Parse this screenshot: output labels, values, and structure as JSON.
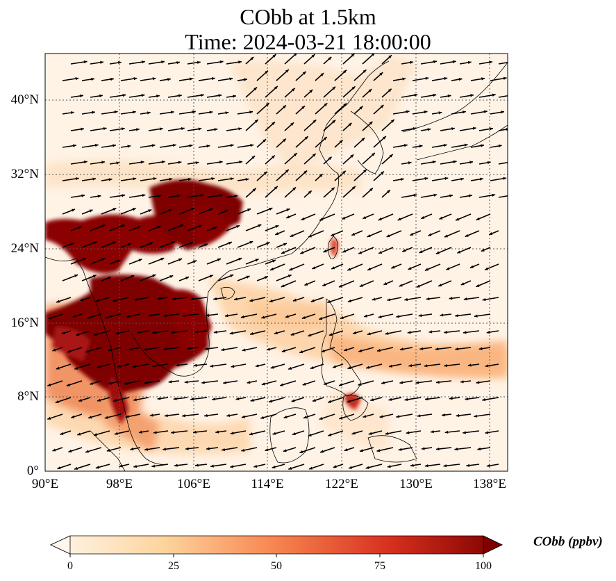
{
  "title": {
    "line1": "CObb at 1.5km",
    "line2": "Time: 2024-03-21 18:00:00"
  },
  "map": {
    "type": "filled-contour-with-wind-vectors",
    "variable": "CObb",
    "level": "1.5km",
    "lon_range": [
      90,
      139
    ],
    "lat_range": [
      0,
      45
    ],
    "gridlines": true,
    "gridline_style": "dotted",
    "lat_ticks": [
      {
        "value": 40,
        "label": "40°N"
      },
      {
        "value": 32,
        "label": "32°N"
      },
      {
        "value": 24,
        "label": "24°N"
      },
      {
        "value": 16,
        "label": "16°N"
      },
      {
        "value": 8,
        "label": "8°N"
      },
      {
        "value": 0,
        "label": "0°"
      }
    ],
    "lon_ticks": [
      {
        "value": 90,
        "label": "90°E"
      },
      {
        "value": 98,
        "label": "98°E"
      },
      {
        "value": 106,
        "label": "106°E"
      },
      {
        "value": 114,
        "label": "114°E"
      },
      {
        "value": 122,
        "label": "122°E"
      },
      {
        "value": 130,
        "label": "130°E"
      },
      {
        "value": 138,
        "label": "138°E"
      }
    ],
    "colormap": "OrRd",
    "colors": {
      "low": "#fff7ec",
      "mid": "#f7a55f",
      "high": "#7f0000",
      "coast": "#000000"
    }
  },
  "colorbar": {
    "label": "CObb (ppbv)",
    "range": [
      0,
      100
    ],
    "extend": "both",
    "ticks": [
      {
        "value": 0,
        "label": "0"
      },
      {
        "value": 25,
        "label": "25"
      },
      {
        "value": 50,
        "label": "50"
      },
      {
        "value": 75,
        "label": "75"
      },
      {
        "value": 100,
        "label": "100"
      }
    ]
  }
}
